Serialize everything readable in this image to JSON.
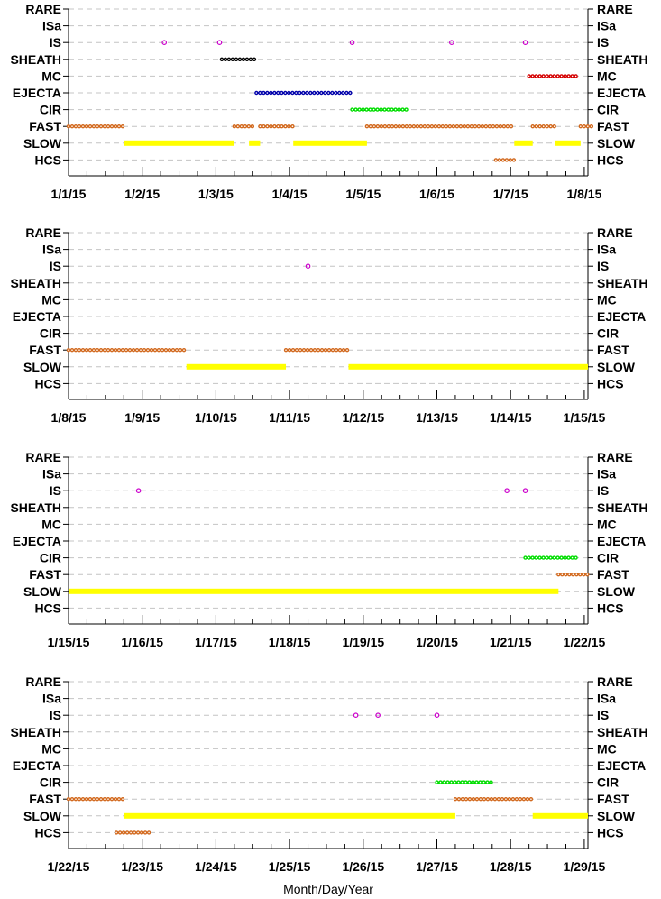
{
  "chart_data": {
    "type": "scatter",
    "xlabel": "Month/Day/Year",
    "categories": [
      "RARE",
      "ISa",
      "IS",
      "SHEATH",
      "MC",
      "EJECTA",
      "CIR",
      "FAST",
      "SLOW",
      "HCS"
    ],
    "colors": {
      "IS": "#cc00cc",
      "SHEATH": "#000000",
      "MC": "#d40000",
      "EJECTA": "#0000aa",
      "CIR": "#00dd00",
      "FAST": "#d2691e",
      "SLOW": "#ffff00",
      "HCS": "#d2691e"
    },
    "grid": "dashed horizontal",
    "panels": [
      {
        "x_range": [
          "1/1/15",
          "1/8/15"
        ],
        "xticks": [
          "1/1/15",
          "1/2/15",
          "1/3/15",
          "1/4/15",
          "1/5/15",
          "1/6/15",
          "1/7/15",
          "1/8/15"
        ],
        "series": [
          {
            "category": "IS",
            "points": [
              1.3,
              2.05,
              3.85,
              5.2,
              6.2
            ]
          },
          {
            "category": "SHEATH",
            "intervals": [
              [
                2.08,
                2.55
              ]
            ]
          },
          {
            "category": "MC",
            "intervals": [
              [
                6.25,
                6.9
              ]
            ]
          },
          {
            "category": "EJECTA",
            "intervals": [
              [
                2.55,
                3.85
              ]
            ]
          },
          {
            "category": "CIR",
            "intervals": [
              [
                3.85,
                4.6
              ]
            ]
          },
          {
            "category": "FAST",
            "intervals": [
              [
                0,
                0.75
              ],
              [
                2.25,
                2.5
              ],
              [
                2.6,
                3.05
              ],
              [
                4.05,
                6.05
              ],
              [
                6.3,
                6.6
              ],
              [
                6.95,
                7.1
              ]
            ]
          },
          {
            "category": "SLOW",
            "intervals": [
              [
                0.75,
                2.25
              ],
              [
                2.45,
                2.6
              ],
              [
                3.05,
                4.05
              ],
              [
                6.05,
                6.3
              ],
              [
                6.6,
                6.95
              ]
            ]
          },
          {
            "category": "HCS",
            "intervals": [
              [
                5.8,
                6.05
              ]
            ]
          }
        ]
      },
      {
        "x_range": [
          "1/8/15",
          "1/15/15"
        ],
        "xticks": [
          "1/8/15",
          "1/9/15",
          "1/10/15",
          "1/11/15",
          "1/12/15",
          "1/13/15",
          "1/14/15",
          "1/15/15"
        ],
        "series": [
          {
            "category": "IS",
            "points": [
              3.25
            ]
          },
          {
            "category": "FAST",
            "intervals": [
              [
                0,
                1.6
              ],
              [
                2.95,
                3.8
              ]
            ]
          },
          {
            "category": "SLOW",
            "intervals": [
              [
                1.6,
                2.95
              ],
              [
                3.8,
                7.05
              ]
            ]
          }
        ]
      },
      {
        "x_range": [
          "1/15/15",
          "1/22/15"
        ],
        "xticks": [
          "1/15/15",
          "1/16/15",
          "1/17/15",
          "1/18/15",
          "1/19/15",
          "1/20/15",
          "1/21/15",
          "1/22/15"
        ],
        "series": [
          {
            "category": "IS",
            "points": [
              0.95,
              5.95,
              6.2
            ]
          },
          {
            "category": "CIR",
            "intervals": [
              [
                6.2,
                6.9
              ]
            ]
          },
          {
            "category": "FAST",
            "intervals": [
              [
                6.65,
                7.05
              ]
            ]
          },
          {
            "category": "SLOW",
            "intervals": [
              [
                0,
                6.65
              ]
            ]
          }
        ]
      },
      {
        "x_range": [
          "1/22/15",
          "1/29/15"
        ],
        "xticks": [
          "1/22/15",
          "1/23/15",
          "1/24/15",
          "1/25/15",
          "1/26/15",
          "1/27/15",
          "1/28/15",
          "1/29/15"
        ],
        "series": [
          {
            "category": "IS",
            "points": [
              3.9,
              4.2,
              5.0
            ]
          },
          {
            "category": "CIR",
            "intervals": [
              [
                5.0,
                5.75
              ]
            ]
          },
          {
            "category": "FAST",
            "intervals": [
              [
                0,
                0.75
              ],
              [
                5.25,
                6.3
              ]
            ]
          },
          {
            "category": "SLOW",
            "intervals": [
              [
                0.75,
                5.25
              ],
              [
                6.3,
                7.05
              ]
            ]
          },
          {
            "category": "HCS",
            "intervals": [
              [
                0.65,
                1.1
              ]
            ]
          }
        ]
      }
    ]
  }
}
